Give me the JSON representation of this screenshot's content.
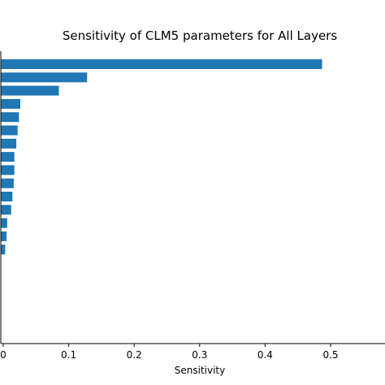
{
  "chart_data": {
    "type": "bar",
    "orientation": "horizontal",
    "title": "Sensitivity of CLM5 parameters for All Layers",
    "xlabel": "Sensitivity",
    "ylabel": "",
    "xlim": [
      0,
      0.57
    ],
    "xticks": [
      0,
      0.1,
      0.2,
      0.3,
      0.4,
      0.5
    ],
    "xtick_labels": [
      "0",
      "0.1",
      "0.2",
      "0.3",
      "0.4",
      "0.5"
    ],
    "values": [
      0.487,
      0.128,
      0.085,
      0.026,
      0.024,
      0.022,
      0.02,
      0.017,
      0.017,
      0.016,
      0.014,
      0.012,
      0.006,
      0.005,
      0.003
    ],
    "bar_color": "#1f77b4",
    "grid": false,
    "legend": "none"
  }
}
